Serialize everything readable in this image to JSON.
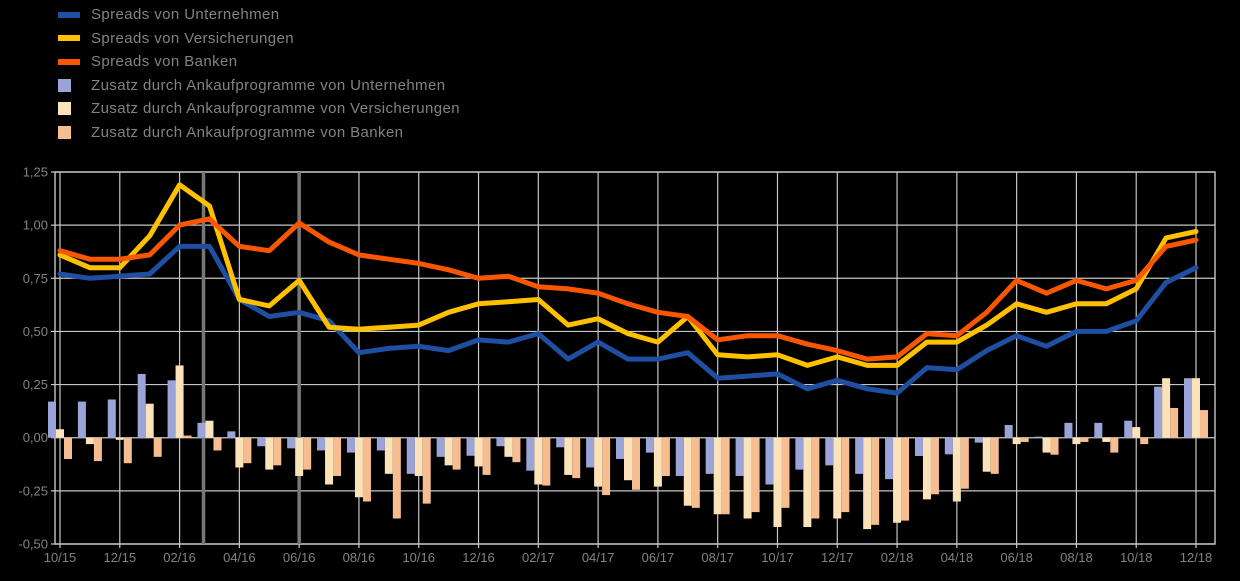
{
  "page": {
    "background": "#000000",
    "text_color": "#828282"
  },
  "legend": {
    "items": [
      {
        "label": "Spreads von Unternehmen",
        "color": "#1E4FA3",
        "swatch": "line"
      },
      {
        "label": "Spreads von Versicherungen",
        "color": "#FFC000",
        "swatch": "line"
      },
      {
        "label": "Spreads von Banken",
        "color": "#F95602",
        "swatch": "line"
      },
      {
        "label": "Zusatz durch Ankaufprogramme von Unternehmen",
        "color": "#9BA4D8",
        "swatch": "square"
      },
      {
        "label": "Zusatz durch Ankaufprogramme von Versicherungen",
        "color": "#FBE2B9",
        "swatch": "square"
      },
      {
        "label": "Zusatz durch Ankaufprogramme von Banken",
        "color": "#F6BD90",
        "swatch": "square"
      }
    ]
  },
  "chart_data": {
    "type": "line+bar",
    "title": "",
    "xlabel": "",
    "ylabel": "",
    "ylim": [
      -0.5,
      1.25
    ],
    "grid": true,
    "legend_position": "top-left",
    "y_tick_labels": [
      "1,25",
      "1,00",
      "0,75",
      "0,50",
      "0,25",
      "0,00",
      "-0,25",
      "-0,50"
    ],
    "y_tick_values": [
      1.25,
      1.0,
      0.75,
      0.5,
      0.25,
      0.0,
      -0.25,
      -0.5
    ],
    "x_tick_labels": [
      "10/15",
      "12/15",
      "02/16",
      "04/16",
      "06/16",
      "08/16",
      "10/16",
      "12/16",
      "02/17",
      "04/17",
      "06/17",
      "08/17",
      "10/17",
      "12/17",
      "02/18",
      "04/18",
      "06/18",
      "08/18",
      "10/18",
      "12/18"
    ],
    "categories": [
      "10/15",
      "11/15",
      "12/15",
      "01/16",
      "02/16",
      "03/16",
      "04/16",
      "05/16",
      "06/16",
      "07/16",
      "08/16",
      "09/16",
      "10/16",
      "11/16",
      "12/16",
      "01/17",
      "02/17",
      "03/17",
      "04/17",
      "05/17",
      "06/17",
      "07/17",
      "08/17",
      "09/17",
      "10/17",
      "11/17",
      "12/17",
      "01/18",
      "02/18",
      "03/18",
      "04/18",
      "05/18",
      "06/18",
      "07/18",
      "08/18",
      "09/18",
      "10/18",
      "11/18",
      "12/18"
    ],
    "event_lines": [
      {
        "month_index": 4.8
      },
      {
        "month_index": 8.0
      }
    ],
    "line_series": [
      {
        "name": "Spreads von Unternehmen",
        "color": "#1E4FA3",
        "values": [
          0.77,
          0.75,
          0.76,
          0.77,
          0.9,
          0.9,
          0.65,
          0.57,
          0.59,
          0.55,
          0.4,
          0.42,
          0.43,
          0.41,
          0.46,
          0.45,
          0.49,
          0.37,
          0.45,
          0.37,
          0.37,
          0.4,
          0.28,
          0.29,
          0.3,
          0.23,
          0.27,
          0.23,
          0.21,
          0.33,
          0.32,
          0.41,
          0.48,
          0.43,
          0.5,
          0.5,
          0.55,
          0.73,
          0.8
        ]
      },
      {
        "name": "Spreads von Versicherungen",
        "color": "#FFC000",
        "values": [
          0.86,
          0.8,
          0.8,
          0.95,
          1.19,
          1.09,
          0.65,
          0.62,
          0.74,
          0.52,
          0.51,
          0.52,
          0.53,
          0.59,
          0.63,
          0.64,
          0.65,
          0.53,
          0.56,
          0.49,
          0.45,
          0.57,
          0.39,
          0.38,
          0.39,
          0.34,
          0.38,
          0.34,
          0.34,
          0.45,
          0.45,
          0.53,
          0.63,
          0.59,
          0.63,
          0.63,
          0.7,
          0.94,
          0.97
        ]
      },
      {
        "name": "Spreads von Banken",
        "color": "#F95602",
        "values": [
          0.88,
          0.84,
          0.84,
          0.86,
          1.0,
          1.03,
          0.9,
          0.88,
          1.01,
          0.92,
          0.86,
          0.84,
          0.82,
          0.79,
          0.75,
          0.76,
          0.71,
          0.7,
          0.68,
          0.63,
          0.59,
          0.57,
          0.46,
          0.48,
          0.48,
          0.44,
          0.41,
          0.37,
          0.38,
          0.49,
          0.48,
          0.59,
          0.74,
          0.68,
          0.74,
          0.7,
          0.74,
          0.9,
          0.93
        ]
      }
    ],
    "bar_series": [
      {
        "name": "Zusatz durch Ankaufprogramme von Unternehmen",
        "color": "#9BA4D8",
        "values": [
          0.17,
          0.17,
          0.18,
          0.3,
          0.27,
          0.07,
          0.03,
          -0.04,
          -0.05,
          -0.06,
          -0.07,
          -0.06,
          -0.17,
          -0.09,
          -0.085,
          -0.04,
          -0.155,
          -0.045,
          -0.14,
          -0.1,
          -0.07,
          -0.18,
          -0.17,
          -0.18,
          -0.22,
          -0.15,
          -0.13,
          -0.17,
          -0.195,
          -0.086,
          -0.078,
          -0.023,
          0.06,
          0.005,
          0.07,
          0.07,
          0.08,
          0.24,
          0.28
        ]
      },
      {
        "name": "Zusatz durch Ankaufprogramme von Versicherungen",
        "color": "#FBE2B9",
        "values": [
          0.04,
          -0.03,
          -0.01,
          0.16,
          0.34,
          0.08,
          -0.14,
          -0.15,
          -0.18,
          -0.22,
          -0.28,
          -0.17,
          -0.18,
          -0.13,
          -0.135,
          -0.09,
          -0.22,
          -0.175,
          -0.23,
          -0.2,
          -0.23,
          -0.32,
          -0.36,
          -0.38,
          -0.42,
          -0.42,
          -0.38,
          -0.43,
          -0.4,
          -0.29,
          -0.3,
          -0.16,
          -0.03,
          -0.07,
          -0.03,
          -0.02,
          0.05,
          0.28,
          0.28
        ]
      },
      {
        "name": "Zusatz durch Ankaufprogramme von Banken",
        "color": "#F6BD90",
        "values": [
          -0.1,
          -0.11,
          -0.12,
          -0.09,
          0.01,
          -0.06,
          -0.12,
          -0.13,
          -0.15,
          -0.18,
          -0.3,
          -0.38,
          -0.31,
          -0.15,
          -0.175,
          -0.115,
          -0.225,
          -0.19,
          -0.27,
          -0.245,
          -0.18,
          -0.33,
          -0.36,
          -0.35,
          -0.33,
          -0.38,
          -0.35,
          -0.41,
          -0.39,
          -0.266,
          -0.24,
          -0.17,
          -0.02,
          -0.08,
          -0.02,
          -0.07,
          -0.03,
          0.14,
          0.13
        ]
      }
    ],
    "style": {
      "grid_color": "#C6C6C6",
      "event_line_color": "#777777",
      "axis_text_color": "#828282"
    }
  }
}
